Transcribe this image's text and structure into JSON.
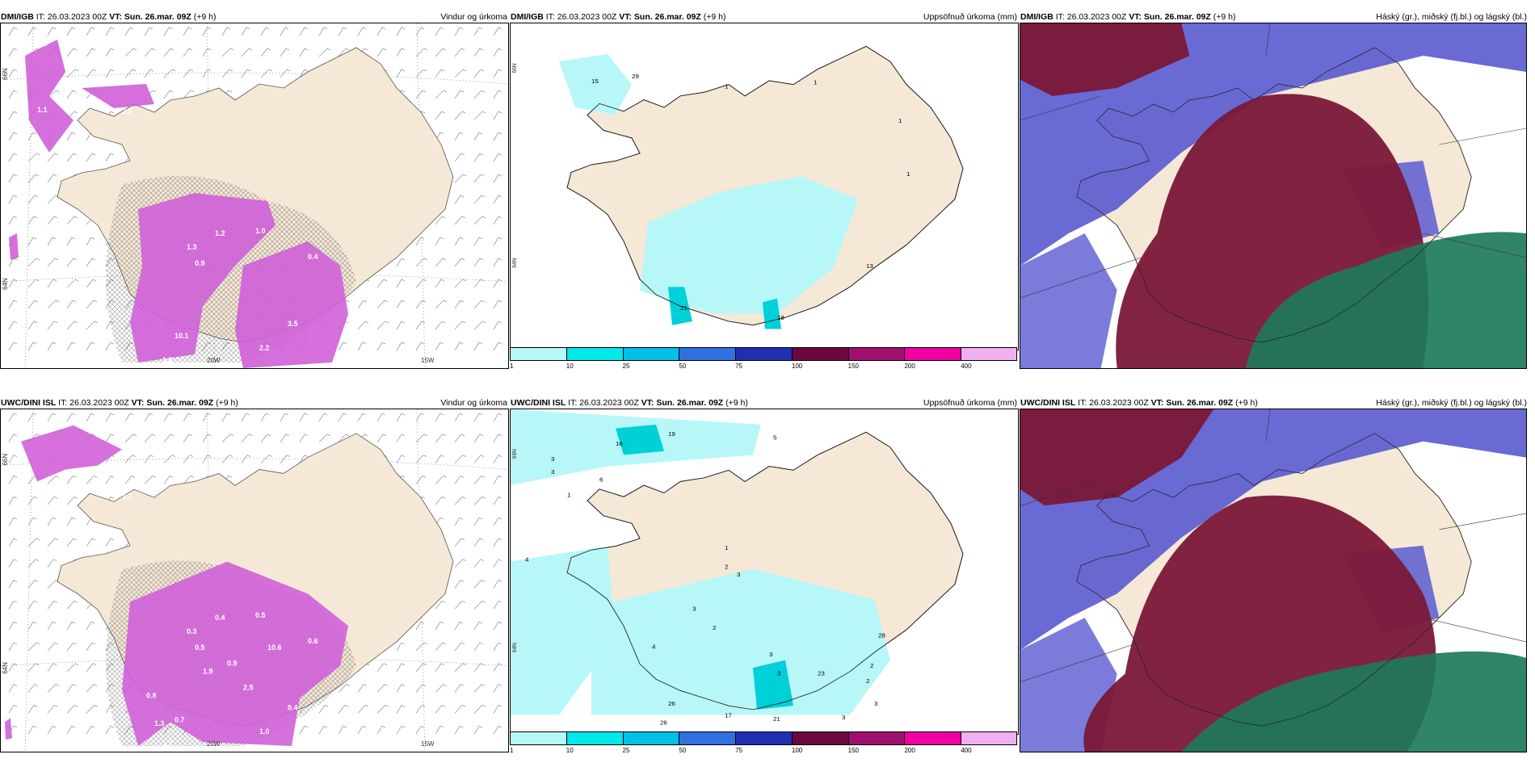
{
  "rows": [
    {
      "model_label": "DMI/IGB",
      "panels": {
        "wind": {
          "header": {
            "model": "DMI/IGB",
            "it": "IT: 26.03.2023 00Z",
            "vt": "VT: Sun. 26.mar. 09Z",
            "lead": "(+9 h)",
            "title": "Vindur og úrkoma"
          },
          "values": [
            "0.3",
            "1.1",
            "2.0",
            "2.2",
            "1.3",
            "1.2",
            "1.0",
            "0.4",
            "10.1",
            "2.2",
            "3.5",
            "1.8",
            "1.3",
            "0.9"
          ],
          "lon_labels": [
            "20W",
            "15W"
          ],
          "lat_labels": [
            "66N",
            "64N"
          ]
        },
        "precip": {
          "header": {
            "model": "DMI/IGB",
            "it": "IT: 26.03.2023 00Z",
            "vt": "VT: Sun. 26.mar. 09Z",
            "lead": "(+9 h)",
            "title": "Uppsöfnuð úrkoma (mm)"
          },
          "values": [
            "15",
            "29",
            "1",
            "1",
            "1",
            "1",
            "21",
            "18",
            "13"
          ],
          "lat_labels": [
            "66N",
            "64N"
          ]
        },
        "cloud": {
          "header": {
            "model": "DMI/IGB",
            "it": "IT: 26.03.2023 00Z",
            "vt": "VT: Sun. 26.mar. 09Z",
            "lead": "(+9 h)",
            "title": "Háský (gr.), miðský (fj.bl.) og lágský (bl.)"
          }
        }
      }
    },
    {
      "model_label": "UWC/DINI ISL",
      "panels": {
        "wind": {
          "header": {
            "model": "UWC/DINI ISL",
            "it": "IT: 26.03.2023 00Z",
            "vt": "VT: Sun. 26.mar. 09Z",
            "lead": "(+9 h)",
            "title": "Vindur og úrkoma"
          },
          "values": [
            "0.5",
            "3.0",
            "0.4",
            "1.7",
            "0.3",
            "0.4",
            "0.5",
            "0.6",
            "0.7",
            "1.0",
            "0.4",
            "1.7",
            "0.6",
            "0.5",
            "0.9",
            "2.5",
            "1.9",
            "10.6",
            "0.8",
            "1.3",
            "0.3"
          ],
          "lon_labels": [
            "20W",
            "15W"
          ],
          "lat_labels": [
            "66N",
            "64N"
          ]
        },
        "precip": {
          "header": {
            "model": "UWC/DINI ISL",
            "it": "IT: 26.03.2023 00Z",
            "vt": "VT: Sun. 26.mar. 09Z",
            "lead": "(+9 h)",
            "title": "Uppsöfnuð úrkoma (mm)"
          },
          "values": [
            "5",
            "3",
            "3",
            "19",
            "16",
            "6",
            "1",
            "4",
            "1",
            "2",
            "3",
            "3",
            "2",
            "4",
            "3",
            "3",
            "23",
            "26",
            "26",
            "17",
            "21",
            "28",
            "2",
            "2",
            "3",
            "3"
          ],
          "lat_labels": [
            "66N",
            "64N"
          ]
        },
        "cloud": {
          "header": {
            "model": "UWC/DINI ISL",
            "it": "IT: 26.03.2023 00Z",
            "vt": "VT: Sun. 26.mar. 09Z",
            "lead": "(+9 h)",
            "title": "Háský (gr.), miðský (fj.bl.) og lágský (bl.)"
          }
        }
      }
    }
  ],
  "colorbar": {
    "ticks": [
      "1",
      "10",
      "25",
      "50",
      "75",
      "100",
      "150",
      "200",
      "400"
    ],
    "colors": [
      "#b8f7f7",
      "#00e8e8",
      "#00c0e8",
      "#3070e0",
      "#2030b0",
      "#6a0840",
      "#a01070",
      "#f000a0",
      "#f0b0f0"
    ]
  },
  "palette": {
    "land": "#f6e8d6",
    "precip_light": "#b8f7f7",
    "wind_precip": "#d060d8",
    "cloud_high": "#7a1838",
    "cloud_mid": "#1e7a5a",
    "cloud_low": "#5a5ad0"
  }
}
